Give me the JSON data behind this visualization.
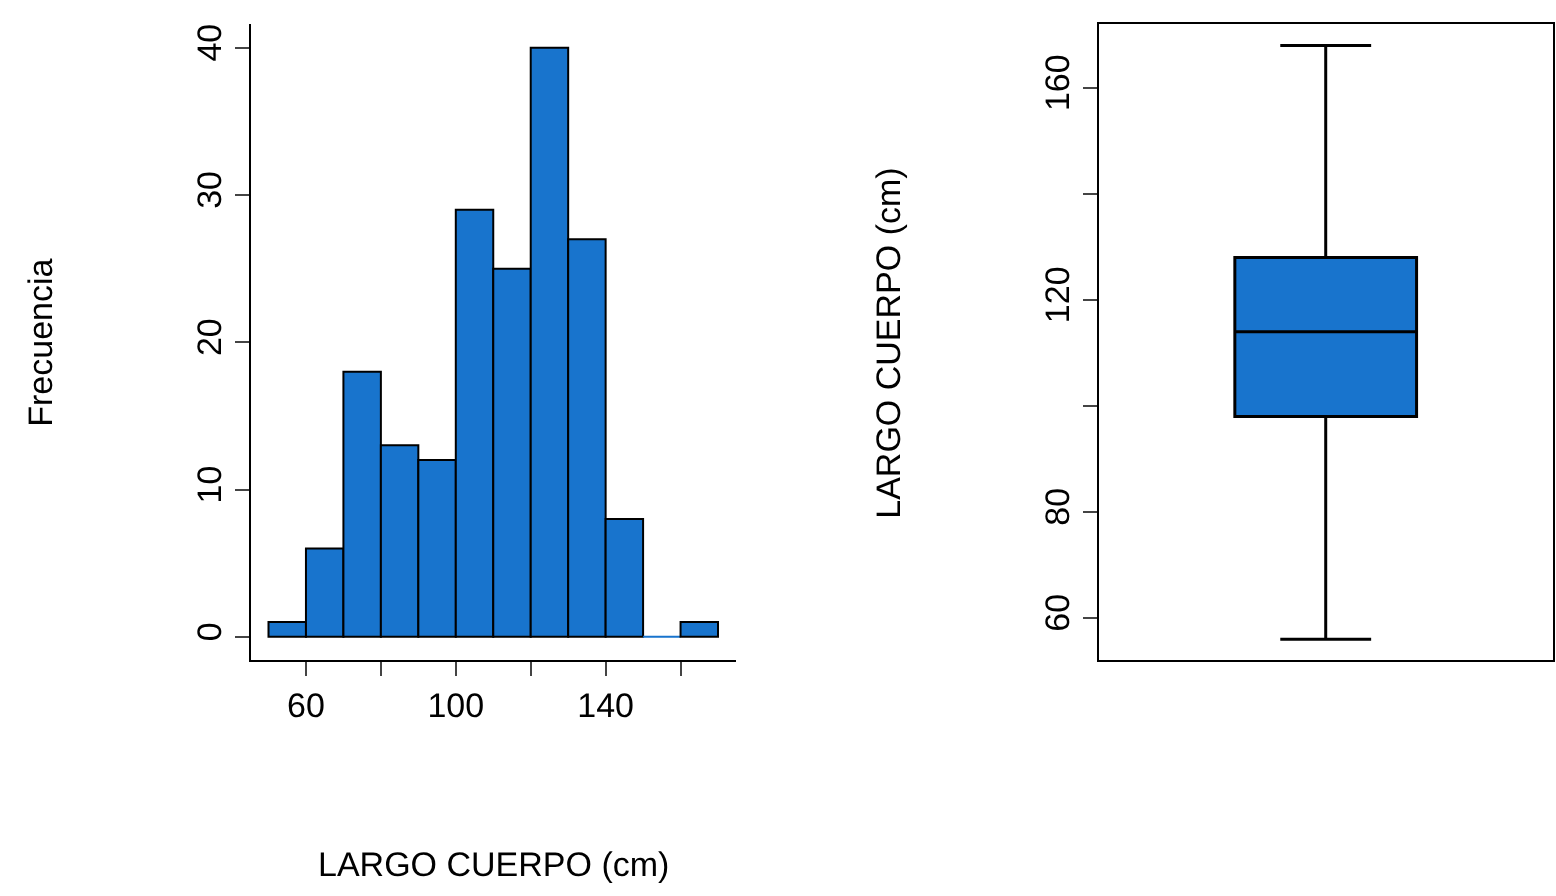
{
  "chart_data": [
    {
      "type": "histogram",
      "xlabel": "LARGO CUERPO (cm)",
      "ylabel": "Frecuencia",
      "color": "#1874cd",
      "bins": [
        50,
        60,
        70,
        80,
        90,
        100,
        110,
        120,
        130,
        140,
        150,
        160,
        170
      ],
      "values": [
        1,
        6,
        18,
        13,
        12,
        29,
        25,
        40,
        27,
        8,
        0,
        1
      ],
      "xlim": [
        45.2,
        174.8
      ],
      "xticks": [
        60,
        {
          "value": 80,
          "label": null
        },
        100,
        {
          "value": 120,
          "label": null
        },
        140,
        {
          "value": 160,
          "label": null
        }
      ],
      "ylim": [
        -1.6,
        41.6
      ],
      "yticks": [
        0,
        10,
        20,
        30,
        40
      ]
    },
    {
      "type": "box",
      "ylabel": "LARGO CUERPO (cm)",
      "color": "#1874cd",
      "categories": [
        null
      ],
      "boxes": [
        {
          "low": 56,
          "q1": 98,
          "median": 114,
          "q3": 128,
          "high": 168
        }
      ],
      "ylim": [
        52,
        172
      ],
      "yticks": [
        60,
        80,
        {
          "value": 100,
          "label": null
        },
        120,
        {
          "value": 140,
          "label": null
        },
        160
      ],
      "tick_labels": "y"
    }
  ]
}
